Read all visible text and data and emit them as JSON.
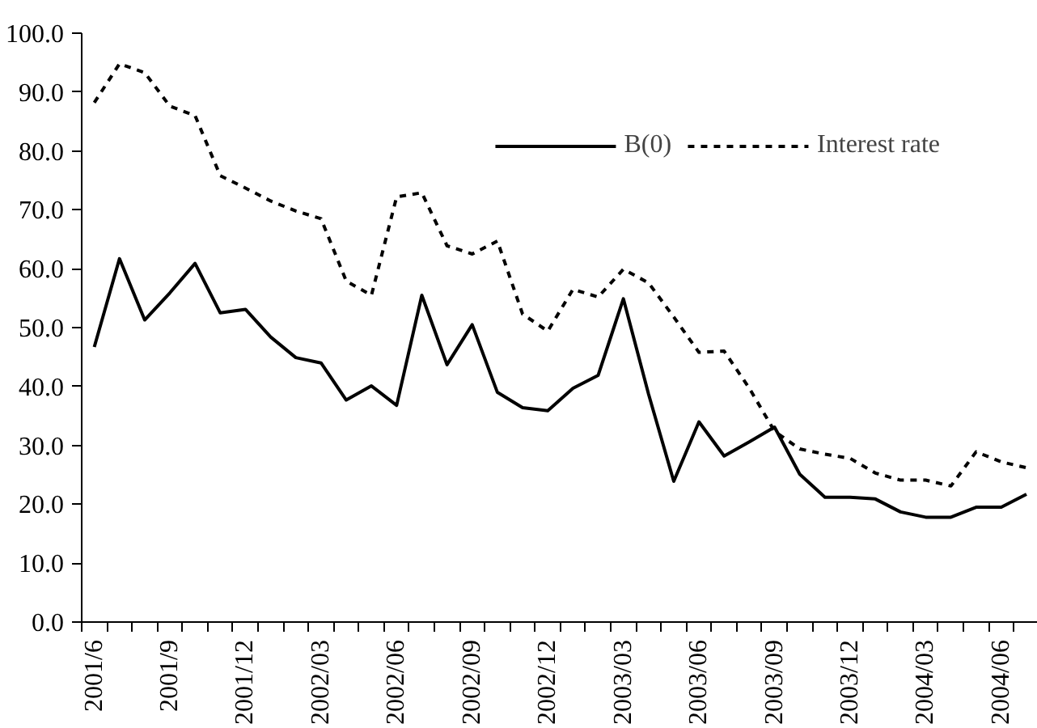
{
  "chart_data": {
    "type": "line",
    "categories": [
      "2001/6",
      null,
      null,
      "2001/9",
      null,
      null,
      "2001/12",
      null,
      null,
      "2002/03",
      null,
      null,
      "2002/06",
      null,
      null,
      "2002/09",
      null,
      null,
      "2002/12",
      null,
      null,
      "2003/03",
      null,
      null,
      "2003/06",
      null,
      null,
      "2003/09",
      null,
      null,
      "2003/12",
      null,
      null,
      "2004/03",
      null,
      null,
      "2004/06",
      null
    ],
    "series": [
      {
        "name": "B(0)",
        "color": "#000000",
        "line_style": "solid",
        "values": [
          46.7,
          61.7,
          51.3,
          55.9,
          60.9,
          52.5,
          53.1,
          48.4,
          44.9,
          44.0,
          37.7,
          40.1,
          36.8,
          55.5,
          43.7,
          50.5,
          39.0,
          36.4,
          35.9,
          39.7,
          41.9,
          54.9,
          38.7,
          23.9,
          34.0,
          28.2,
          30.6,
          33.1,
          25.1,
          21.2,
          21.2,
          20.9,
          18.7,
          17.8,
          17.8,
          19.5,
          19.5,
          21.7
        ]
      },
      {
        "name": "Interest rate",
        "color": "#000000",
        "line_style": "dashed",
        "values": [
          88.2,
          94.8,
          93.3,
          87.6,
          86.0,
          75.8,
          73.7,
          71.5,
          69.8,
          68.5,
          57.9,
          55.5,
          72.2,
          72.9,
          63.9,
          62.5,
          64.7,
          52.3,
          49.4,
          56.5,
          55.2,
          59.9,
          57.6,
          51.8,
          45.8,
          46.0,
          39.7,
          32.4,
          29.4,
          28.5,
          27.8,
          25.3,
          24.1,
          24.1,
          23.1,
          28.9,
          27.2,
          26.2
        ]
      }
    ],
    "ylim": [
      0,
      100
    ],
    "yticks": [
      {
        "value": 0,
        "label": "0.0"
      },
      {
        "value": 10,
        "label": "10.0"
      },
      {
        "value": 20,
        "label": "20.0"
      },
      {
        "value": 30,
        "label": "30.0"
      },
      {
        "value": 40,
        "label": "40.0"
      },
      {
        "value": 50,
        "label": "50.0"
      },
      {
        "value": 60,
        "label": "60.0"
      },
      {
        "value": 70,
        "label": "70.0"
      },
      {
        "value": 80,
        "label": "80.0"
      },
      {
        "value": 90,
        "label": "90.0"
      },
      {
        "value": 100,
        "label": "100.0"
      }
    ],
    "grid": false,
    "legend": "top right"
  }
}
